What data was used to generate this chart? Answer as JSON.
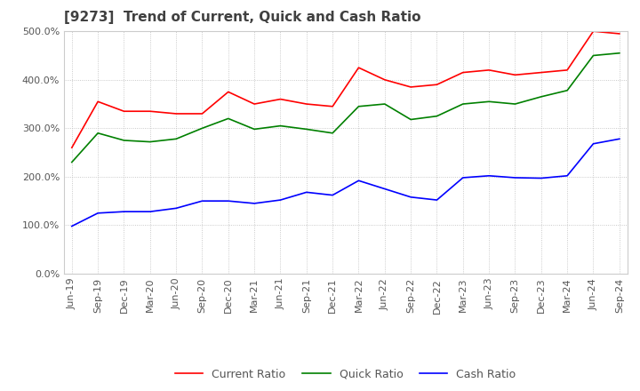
{
  "title": "[9273]  Trend of Current, Quick and Cash Ratio",
  "x_labels": [
    "Jun-19",
    "Sep-19",
    "Dec-19",
    "Mar-20",
    "Jun-20",
    "Sep-20",
    "Dec-20",
    "Mar-21",
    "Jun-21",
    "Sep-21",
    "Dec-21",
    "Mar-22",
    "Jun-22",
    "Sep-22",
    "Dec-22",
    "Mar-23",
    "Jun-23",
    "Sep-23",
    "Dec-23",
    "Mar-24",
    "Jun-24",
    "Sep-24"
  ],
  "current_ratio": [
    260,
    355,
    335,
    335,
    330,
    330,
    375,
    350,
    360,
    350,
    345,
    425,
    400,
    385,
    390,
    415,
    420,
    410,
    415,
    420,
    500,
    495
  ],
  "quick_ratio": [
    230,
    290,
    275,
    272,
    278,
    300,
    320,
    298,
    305,
    298,
    290,
    345,
    350,
    318,
    325,
    350,
    355,
    350,
    365,
    378,
    450,
    455
  ],
  "cash_ratio": [
    98,
    125,
    128,
    128,
    135,
    150,
    150,
    145,
    152,
    168,
    162,
    192,
    175,
    158,
    152,
    198,
    202,
    198,
    197,
    202,
    268,
    278
  ],
  "ylim": [
    0,
    500
  ],
  "yticks": [
    0,
    100,
    200,
    300,
    400,
    500
  ],
  "current_color": "#ff0000",
  "quick_color": "#008000",
  "cash_color": "#0000ff",
  "background_color": "#ffffff",
  "grid_color": "#bbbbbb",
  "title_fontsize": 11,
  "axis_fontsize": 8,
  "legend_fontsize": 9
}
